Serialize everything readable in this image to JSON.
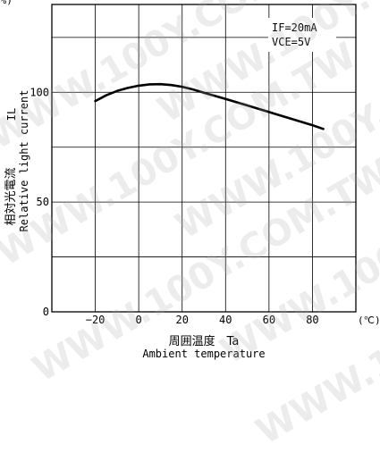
{
  "chart_data": {
    "type": "line",
    "x": [
      -20,
      -15,
      -10,
      -5,
      0,
      5,
      10,
      15,
      20,
      25,
      30,
      40,
      50,
      60,
      70,
      80,
      85
    ],
    "series": [
      {
        "values": [
          96,
          98.6,
          100.6,
          102,
          103,
          103.6,
          103.7,
          103.3,
          102.5,
          101.3,
          99.8,
          97,
          94,
          91,
          88,
          85,
          83.3
        ]
      }
    ],
    "xlim": [
      -40,
      100
    ],
    "ylim": [
      0,
      140
    ],
    "xticks": [
      -20,
      0,
      20,
      40,
      60,
      80
    ],
    "yticks": [
      0,
      50,
      100
    ],
    "xtick_labels": [
      "−20",
      "0",
      "20",
      "40",
      "60",
      "80"
    ],
    "ytick_labels": [
      "0",
      "50",
      "100"
    ],
    "x_unit": "(℃)",
    "y_unit_partial": "(%)",
    "xlabel_jp": "周囲温度　Ta",
    "xlabel_en": "Ambient temperature",
    "ylabel_symbol": "IL",
    "ylabel_jp": "相対光電流",
    "ylabel_en": "Relative light current",
    "conditions": [
      "IF=20mA",
      "VCE=5V"
    ],
    "grid": true,
    "line_color": "#000000"
  },
  "watermark": "WWW.100Y.COM.TW"
}
